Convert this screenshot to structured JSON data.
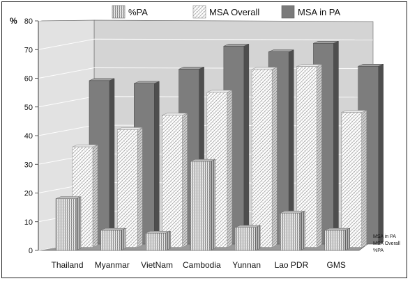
{
  "chart_data": {
    "type": "bar",
    "categories": [
      "Thailand",
      "Myanmar",
      "VietNam",
      "Cambodia",
      "Yunnan",
      "Lao PDR",
      "GMS"
    ],
    "series": [
      {
        "name": "%PA",
        "values": [
          18,
          7,
          6,
          31,
          8,
          13,
          7
        ],
        "pattern": "vertical-hatch",
        "color": "#d0d0d0"
      },
      {
        "name": "MSA Overall",
        "values": [
          35,
          41,
          46,
          54,
          62,
          63,
          47
        ],
        "pattern": "diagonal-hatch",
        "color": "#f4f4f4"
      },
      {
        "name": "MSA in PA",
        "values": [
          57,
          56,
          61,
          69,
          67,
          70,
          62
        ],
        "pattern": "solid",
        "color": "#808080"
      }
    ],
    "ylabel": "%",
    "ylim": [
      0,
      80
    ],
    "yticks": [
      0,
      10,
      20,
      30,
      40,
      50,
      60,
      70,
      80
    ],
    "depth_labels": [
      "MSA in PA",
      "MSA Overall",
      "%PA"
    ],
    "legend": {
      "position": "top",
      "items": [
        "%PA",
        "MSA Overall",
        "MSA in PA"
      ]
    },
    "grid": true
  }
}
